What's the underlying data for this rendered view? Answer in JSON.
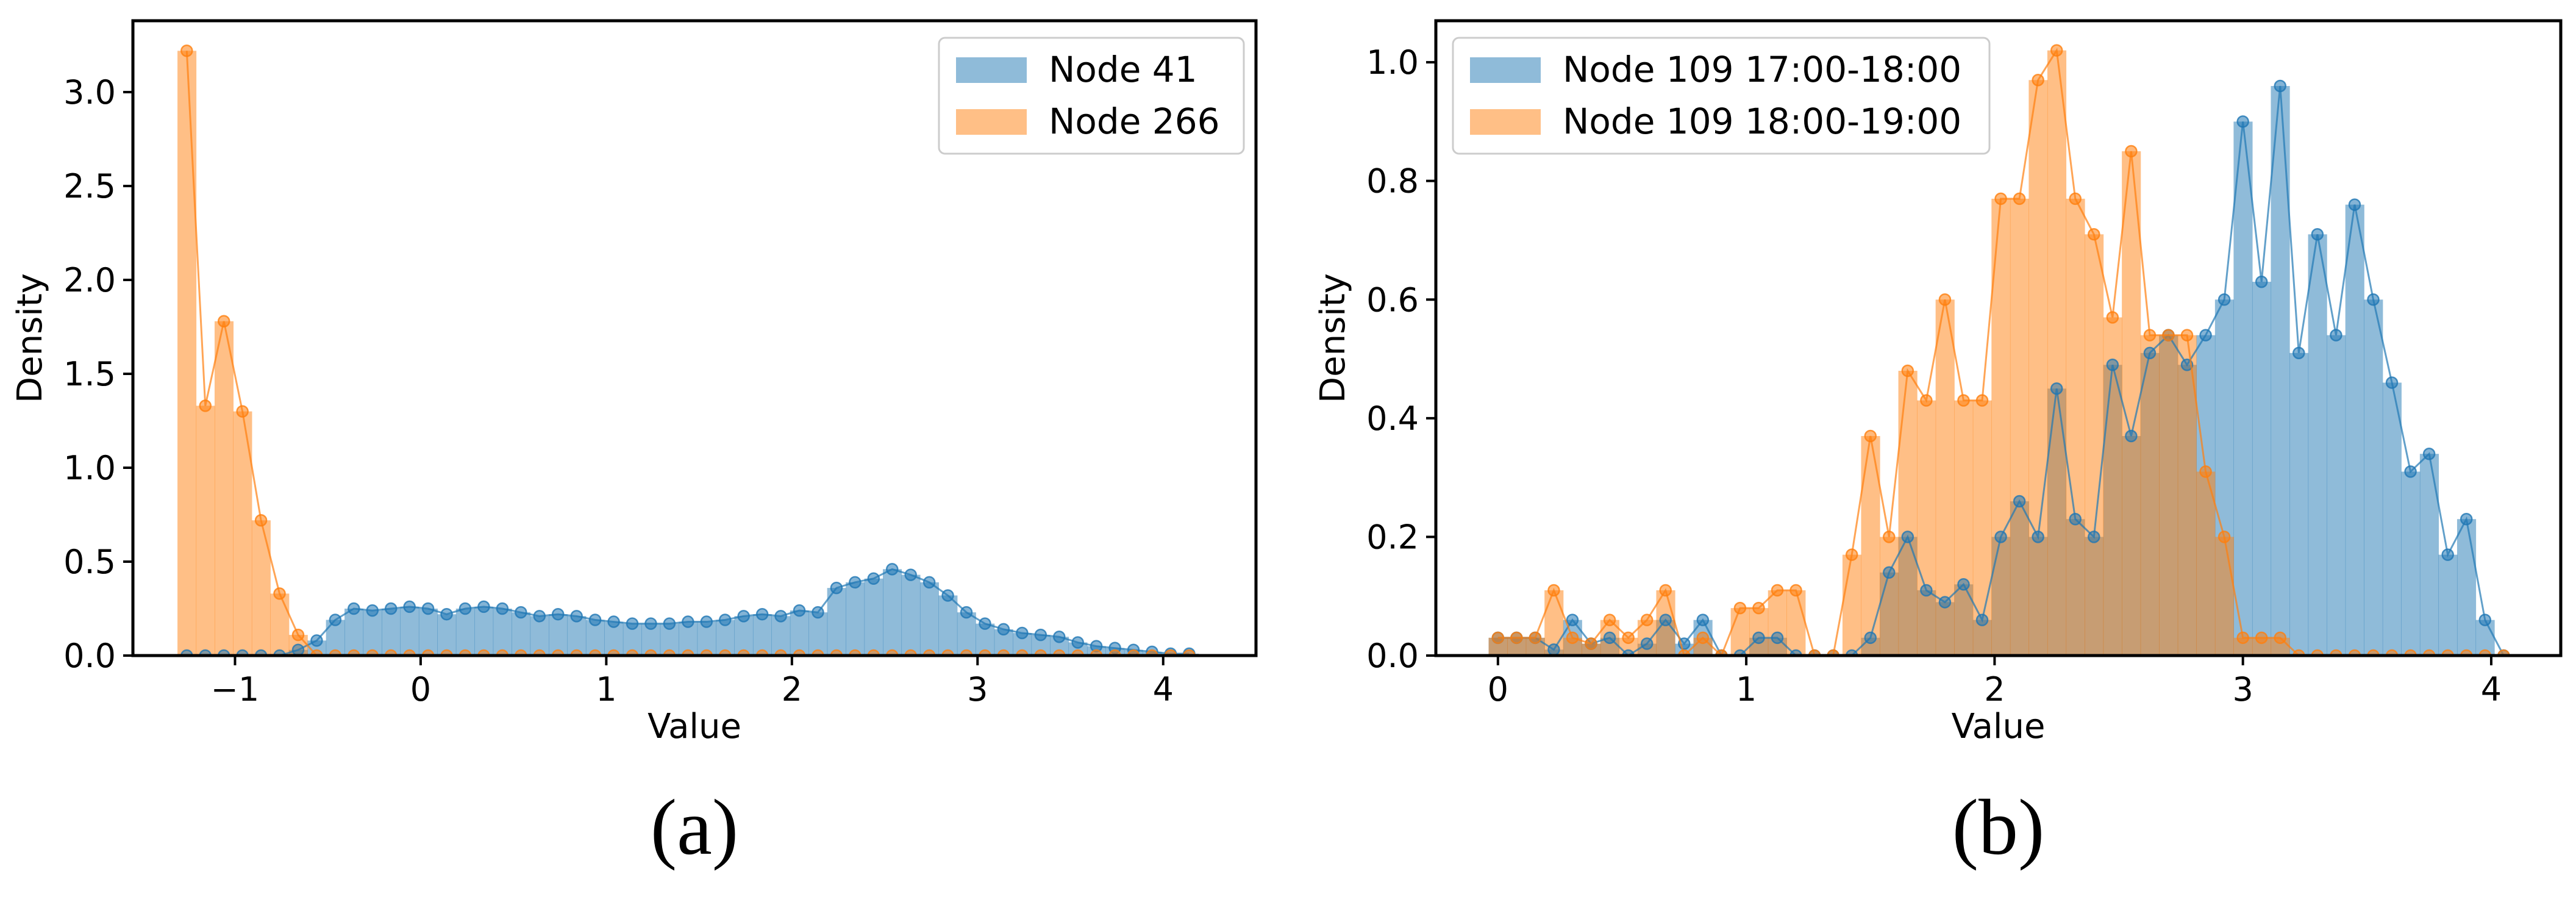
{
  "colors": {
    "blue": "#1f77b4",
    "orange": "#ff7f0e"
  },
  "chart_data": [
    {
      "type": "histogram-line",
      "caption": "(a)",
      "xlabel": "Value",
      "ylabel": "Density",
      "xlim": [
        -1.55,
        4.5
      ],
      "ylim": [
        0,
        3.38
      ],
      "xticks": [
        -1,
        0,
        1,
        2,
        3,
        4
      ],
      "xtick_labels": [
        "−1",
        "0",
        "1",
        "2",
        "3",
        "4"
      ],
      "yticks": [
        0.0,
        0.5,
        1.0,
        1.5,
        2.0,
        2.5,
        3.0
      ],
      "ytick_labels": [
        "0.0",
        "0.5",
        "1.0",
        "1.5",
        "2.0",
        "2.5",
        "3.0"
      ],
      "grid": false,
      "legend_position": "top-right",
      "series": [
        {
          "name": "Node 41",
          "color": "blue",
          "x": [
            -1.26,
            -1.16,
            -1.06,
            -0.96,
            -0.86,
            -0.76,
            -0.66,
            -0.56,
            -0.46,
            -0.36,
            -0.26,
            -0.16,
            -0.06,
            0.04,
            0.14,
            0.24,
            0.34,
            0.44,
            0.54,
            0.64,
            0.74,
            0.84,
            0.94,
            1.04,
            1.14,
            1.24,
            1.34,
            1.44,
            1.54,
            1.64,
            1.74,
            1.84,
            1.94,
            2.04,
            2.14,
            2.24,
            2.34,
            2.44,
            2.54,
            2.64,
            2.74,
            2.84,
            2.94,
            3.04,
            3.14,
            3.24,
            3.34,
            3.44,
            3.54,
            3.64,
            3.74,
            3.84,
            3.94,
            4.04,
            4.14
          ],
          "y": [
            0,
            0,
            0,
            0,
            0,
            0,
            0.03,
            0.08,
            0.19,
            0.25,
            0.24,
            0.25,
            0.26,
            0.25,
            0.22,
            0.25,
            0.26,
            0.25,
            0.23,
            0.21,
            0.22,
            0.21,
            0.19,
            0.18,
            0.17,
            0.17,
            0.17,
            0.18,
            0.18,
            0.19,
            0.21,
            0.22,
            0.21,
            0.24,
            0.23,
            0.36,
            0.39,
            0.41,
            0.46,
            0.43,
            0.39,
            0.32,
            0.23,
            0.17,
            0.14,
            0.12,
            0.11,
            0.1,
            0.07,
            0.05,
            0.04,
            0.03,
            0.02,
            0.01,
            0.01
          ]
        },
        {
          "name": "Node 266",
          "color": "orange",
          "x": [
            -1.26,
            -1.16,
            -1.06,
            -0.96,
            -0.86,
            -0.76,
            -0.66,
            -0.56,
            -0.46,
            -0.36,
            -0.26,
            -0.16,
            -0.06,
            0.04,
            0.14,
            0.24,
            0.34,
            0.44,
            0.54,
            0.64,
            0.74,
            0.84,
            0.94,
            1.04,
            1.14,
            1.24,
            1.34,
            1.44,
            1.54,
            1.64,
            1.74,
            1.84,
            1.94,
            2.04,
            2.14,
            2.24,
            2.34,
            2.44,
            2.54,
            2.64,
            2.74,
            2.84,
            2.94,
            3.04,
            3.14,
            3.24,
            3.34,
            3.44,
            3.54,
            3.64,
            3.74,
            3.84,
            3.94,
            4.04,
            4.14
          ],
          "y": [
            3.22,
            1.33,
            1.78,
            1.3,
            0.72,
            0.33,
            0.11,
            0,
            0,
            0,
            0,
            0,
            0,
            0,
            0,
            0,
            0,
            0,
            0,
            0,
            0,
            0,
            0,
            0,
            0,
            0,
            0,
            0,
            0,
            0,
            0,
            0,
            0,
            0,
            0,
            0,
            0,
            0,
            0,
            0,
            0,
            0,
            0,
            0,
            0,
            0,
            0,
            0,
            0,
            0,
            0,
            0,
            0,
            0,
            0
          ]
        }
      ]
    },
    {
      "type": "histogram-line",
      "caption": "(b)",
      "xlabel": "Value",
      "ylabel": "Density",
      "xlim": [
        -0.25,
        4.28
      ],
      "ylim": [
        0,
        1.07
      ],
      "xticks": [
        0,
        1,
        2,
        3,
        4
      ],
      "xtick_labels": [
        "0",
        "1",
        "2",
        "3",
        "4"
      ],
      "yticks": [
        0.0,
        0.2,
        0.4,
        0.6,
        0.8,
        1.0
      ],
      "ytick_labels": [
        "0.0",
        "0.2",
        "0.4",
        "0.6",
        "0.8",
        "1.0"
      ],
      "grid": false,
      "legend_position": "top-left",
      "series": [
        {
          "name": "Node 109 17:00-18:00",
          "color": "blue",
          "x": [
            0.0,
            0.075,
            0.15,
            0.225,
            0.3,
            0.375,
            0.45,
            0.525,
            0.6,
            0.675,
            0.75,
            0.825,
            0.9,
            0.975,
            1.05,
            1.125,
            1.2,
            1.275,
            1.35,
            1.425,
            1.5,
            1.575,
            1.65,
            1.725,
            1.8,
            1.875,
            1.95,
            2.025,
            2.1,
            2.175,
            2.25,
            2.325,
            2.4,
            2.475,
            2.55,
            2.625,
            2.7,
            2.775,
            2.85,
            2.925,
            3.0,
            3.075,
            3.15,
            3.225,
            3.3,
            3.375,
            3.45,
            3.525,
            3.6,
            3.675,
            3.75,
            3.825,
            3.9,
            3.975,
            4.05
          ],
          "y": [
            0.03,
            0.03,
            0.03,
            0.01,
            0.06,
            0.02,
            0.03,
            0,
            0.02,
            0.06,
            0.02,
            0.06,
            0,
            0,
            0.03,
            0.03,
            0,
            0,
            0,
            0,
            0.03,
            0.14,
            0.2,
            0.11,
            0.09,
            0.12,
            0.06,
            0.2,
            0.26,
            0.2,
            0.45,
            0.23,
            0.2,
            0.49,
            0.37,
            0.51,
            0.54,
            0.49,
            0.54,
            0.6,
            0.9,
            0.63,
            0.96,
            0.51,
            0.71,
            0.54,
            0.76,
            0.6,
            0.46,
            0.31,
            0.34,
            0.17,
            0.23,
            0.06,
            0
          ]
        },
        {
          "name": "Node 109 18:00-19:00",
          "color": "orange",
          "x": [
            0.0,
            0.075,
            0.15,
            0.225,
            0.3,
            0.375,
            0.45,
            0.525,
            0.6,
            0.675,
            0.75,
            0.825,
            0.9,
            0.975,
            1.05,
            1.125,
            1.2,
            1.275,
            1.35,
            1.425,
            1.5,
            1.575,
            1.65,
            1.725,
            1.8,
            1.875,
            1.95,
            2.025,
            2.1,
            2.175,
            2.25,
            2.325,
            2.4,
            2.475,
            2.55,
            2.625,
            2.7,
            2.775,
            2.85,
            2.925,
            3.0,
            3.075,
            3.15,
            3.225,
            3.3,
            3.375,
            3.45,
            3.525,
            3.6,
            3.675,
            3.75,
            3.825,
            3.9,
            3.975,
            4.05
          ],
          "y": [
            0.03,
            0.03,
            0.03,
            0.11,
            0.03,
            0.02,
            0.06,
            0.03,
            0.06,
            0.11,
            0,
            0.03,
            0,
            0.08,
            0.08,
            0.11,
            0.11,
            0,
            0,
            0.17,
            0.37,
            0.2,
            0.48,
            0.43,
            0.6,
            0.43,
            0.43,
            0.77,
            0.77,
            0.97,
            1.02,
            0.77,
            0.71,
            0.57,
            0.85,
            0.54,
            0.54,
            0.54,
            0.31,
            0.2,
            0.03,
            0.03,
            0.03,
            0,
            0,
            0,
            0,
            0,
            0,
            0,
            0,
            0,
            0,
            0,
            0
          ]
        }
      ]
    }
  ]
}
